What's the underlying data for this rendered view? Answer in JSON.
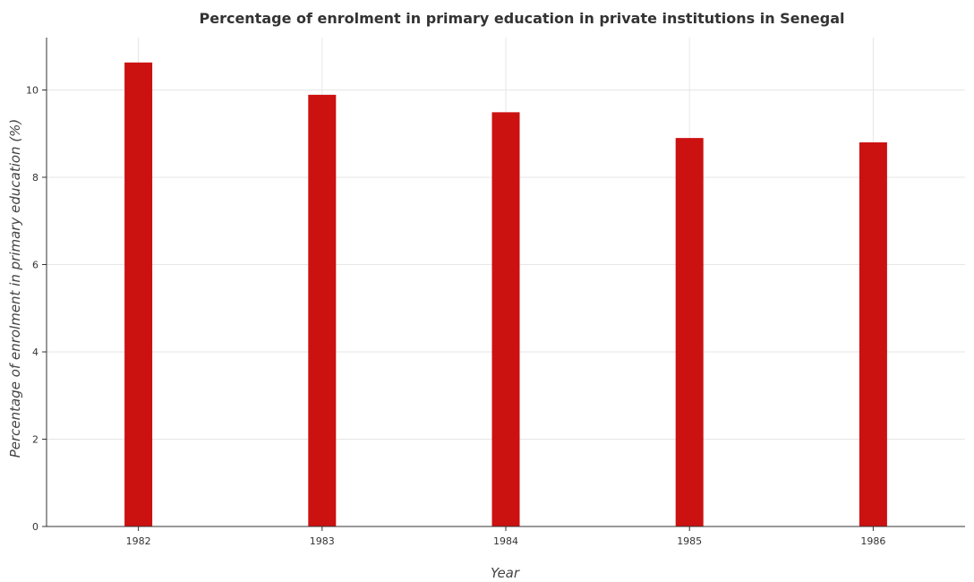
{
  "chart_data": {
    "type": "bar",
    "title": "Percentage of enrolment in primary education in private institutions in Senegal",
    "xlabel": "Year",
    "ylabel": "Percentage of enrolment in primary education (%)",
    "categories": [
      "1982",
      "1983",
      "1984",
      "1985",
      "1986"
    ],
    "values": [
      10.63,
      9.89,
      9.49,
      8.9,
      8.8
    ],
    "ylim": [
      0,
      11.2
    ],
    "yticks": [
      0,
      2,
      4,
      6,
      8,
      10
    ],
    "grid": true,
    "bar_color": "#cc1111"
  }
}
